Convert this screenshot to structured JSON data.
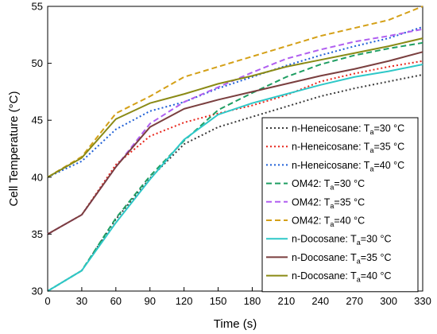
{
  "chart_data": {
    "type": "line",
    "xlabel": "Time (s)",
    "ylabel": "Cell Temperature (°C)",
    "xlim": [
      0,
      330
    ],
    "ylim": [
      30,
      55
    ],
    "xticks": [
      0,
      30,
      60,
      90,
      120,
      150,
      180,
      210,
      240,
      270,
      300,
      330
    ],
    "yticks": [
      30,
      35,
      40,
      45,
      50,
      55
    ],
    "grid": false,
    "legend_position": "bottom-right",
    "series": [
      {
        "name": "n-Heneicosane: Ta=30 °C",
        "legend_main": "n-Heneicosane: T",
        "legend_sub": "a",
        "legend_tail": "=30 °C",
        "color": "#3a3a3a",
        "dash": "dotted",
        "x": [
          0,
          30,
          60,
          90,
          120,
          150,
          180,
          210,
          240,
          270,
          300,
          330
        ],
        "y": [
          30,
          31.8,
          36.3,
          39.9,
          42.9,
          44.4,
          45.3,
          46.2,
          47.1,
          47.8,
          48.4,
          49.0
        ]
      },
      {
        "name": "n-Heneicosane: Ta=35 °C",
        "legend_main": "n-Heneicosane: T",
        "legend_sub": "a",
        "legend_tail": "=35 °C",
        "color": "#e8261c",
        "dash": "dotted",
        "x": [
          0,
          30,
          60,
          90,
          120,
          150,
          180,
          210,
          240,
          270,
          300,
          330
        ],
        "y": [
          35,
          36.7,
          41.1,
          43.6,
          44.8,
          45.6,
          46.3,
          47.2,
          48.4,
          49.1,
          49.7,
          50.2
        ]
      },
      {
        "name": "n-Heneicosane: Ta=40 °C",
        "legend_main": "n-Heneicosane: T",
        "legend_sub": "a",
        "legend_tail": "=40 °C",
        "color": "#1e5fd6",
        "dash": "dotted",
        "x": [
          0,
          30,
          60,
          90,
          120,
          150,
          180,
          210,
          240,
          270,
          300,
          330
        ],
        "y": [
          40,
          41.4,
          44.2,
          45.8,
          46.6,
          47.8,
          48.8,
          49.8,
          50.7,
          51.5,
          52.2,
          53.2
        ]
      },
      {
        "name": "OM42: Ta=30 °C",
        "legend_main": "OM42: T",
        "legend_sub": "a",
        "legend_tail": "=30 °C",
        "color": "#1e9e62",
        "dash": "dashed",
        "x": [
          0,
          30,
          60,
          90,
          120,
          150,
          180,
          210,
          240,
          270,
          300,
          330
        ],
        "y": [
          30,
          31.8,
          36.4,
          40.1,
          43.2,
          45.9,
          47.4,
          48.8,
          49.9,
          50.7,
          51.3,
          51.8
        ]
      },
      {
        "name": "OM42: Ta=35 °C",
        "legend_main": "OM42: T",
        "legend_sub": "a",
        "legend_tail": "=35 °C",
        "color": "#b05ff0",
        "dash": "dashed",
        "x": [
          0,
          30,
          60,
          90,
          120,
          150,
          180,
          210,
          240,
          270,
          300,
          330
        ],
        "y": [
          35,
          36.7,
          40.9,
          44.7,
          46.6,
          47.9,
          49.2,
          50.4,
          51.2,
          51.9,
          52.4,
          53.0
        ]
      },
      {
        "name": "OM42: Ta=40 °C",
        "legend_main": "OM42: T",
        "legend_sub": "a",
        "legend_tail": "=40 °C",
        "color": "#d4a017",
        "dash": "dashed",
        "x": [
          0,
          30,
          60,
          90,
          120,
          150,
          180,
          210,
          240,
          270,
          300,
          330
        ],
        "y": [
          40,
          41.8,
          45.6,
          47.1,
          48.8,
          49.7,
          50.6,
          51.5,
          52.4,
          53.1,
          53.8,
          55.0
        ]
      },
      {
        "name": "n-Docosane: Ta=30 °C",
        "legend_main": "n-Docosane: T",
        "legend_sub": "a",
        "legend_tail": "=30 °C",
        "color": "#2ec8c8",
        "dash": "solid",
        "x": [
          0,
          30,
          60,
          90,
          120,
          150,
          180,
          210,
          240,
          270,
          300,
          330
        ],
        "y": [
          30,
          31.8,
          36.0,
          39.8,
          43.3,
          45.5,
          46.5,
          47.3,
          48.1,
          48.8,
          49.3,
          49.9
        ]
      },
      {
        "name": "n-Docosane: Ta=35 °C",
        "legend_main": "n-Docosane: T",
        "legend_sub": "a",
        "legend_tail": "=35 °C",
        "color": "#7a3f3f",
        "dash": "solid",
        "x": [
          0,
          30,
          60,
          90,
          120,
          150,
          180,
          210,
          240,
          270,
          300,
          330
        ],
        "y": [
          35,
          36.7,
          40.9,
          44.4,
          46.0,
          46.8,
          47.5,
          48.2,
          48.9,
          49.5,
          50.2,
          51.0
        ]
      },
      {
        "name": "n-Docosane: Ta=40 °C",
        "legend_main": "n-Docosane: T",
        "legend_sub": "a",
        "legend_tail": "=40 °C",
        "color": "#8a8a15",
        "dash": "solid",
        "x": [
          0,
          30,
          60,
          90,
          120,
          150,
          180,
          210,
          240,
          270,
          300,
          330
        ],
        "y": [
          40,
          41.7,
          45.1,
          46.5,
          47.3,
          48.2,
          48.9,
          49.7,
          50.3,
          50.9,
          51.5,
          52.2
        ]
      }
    ]
  }
}
